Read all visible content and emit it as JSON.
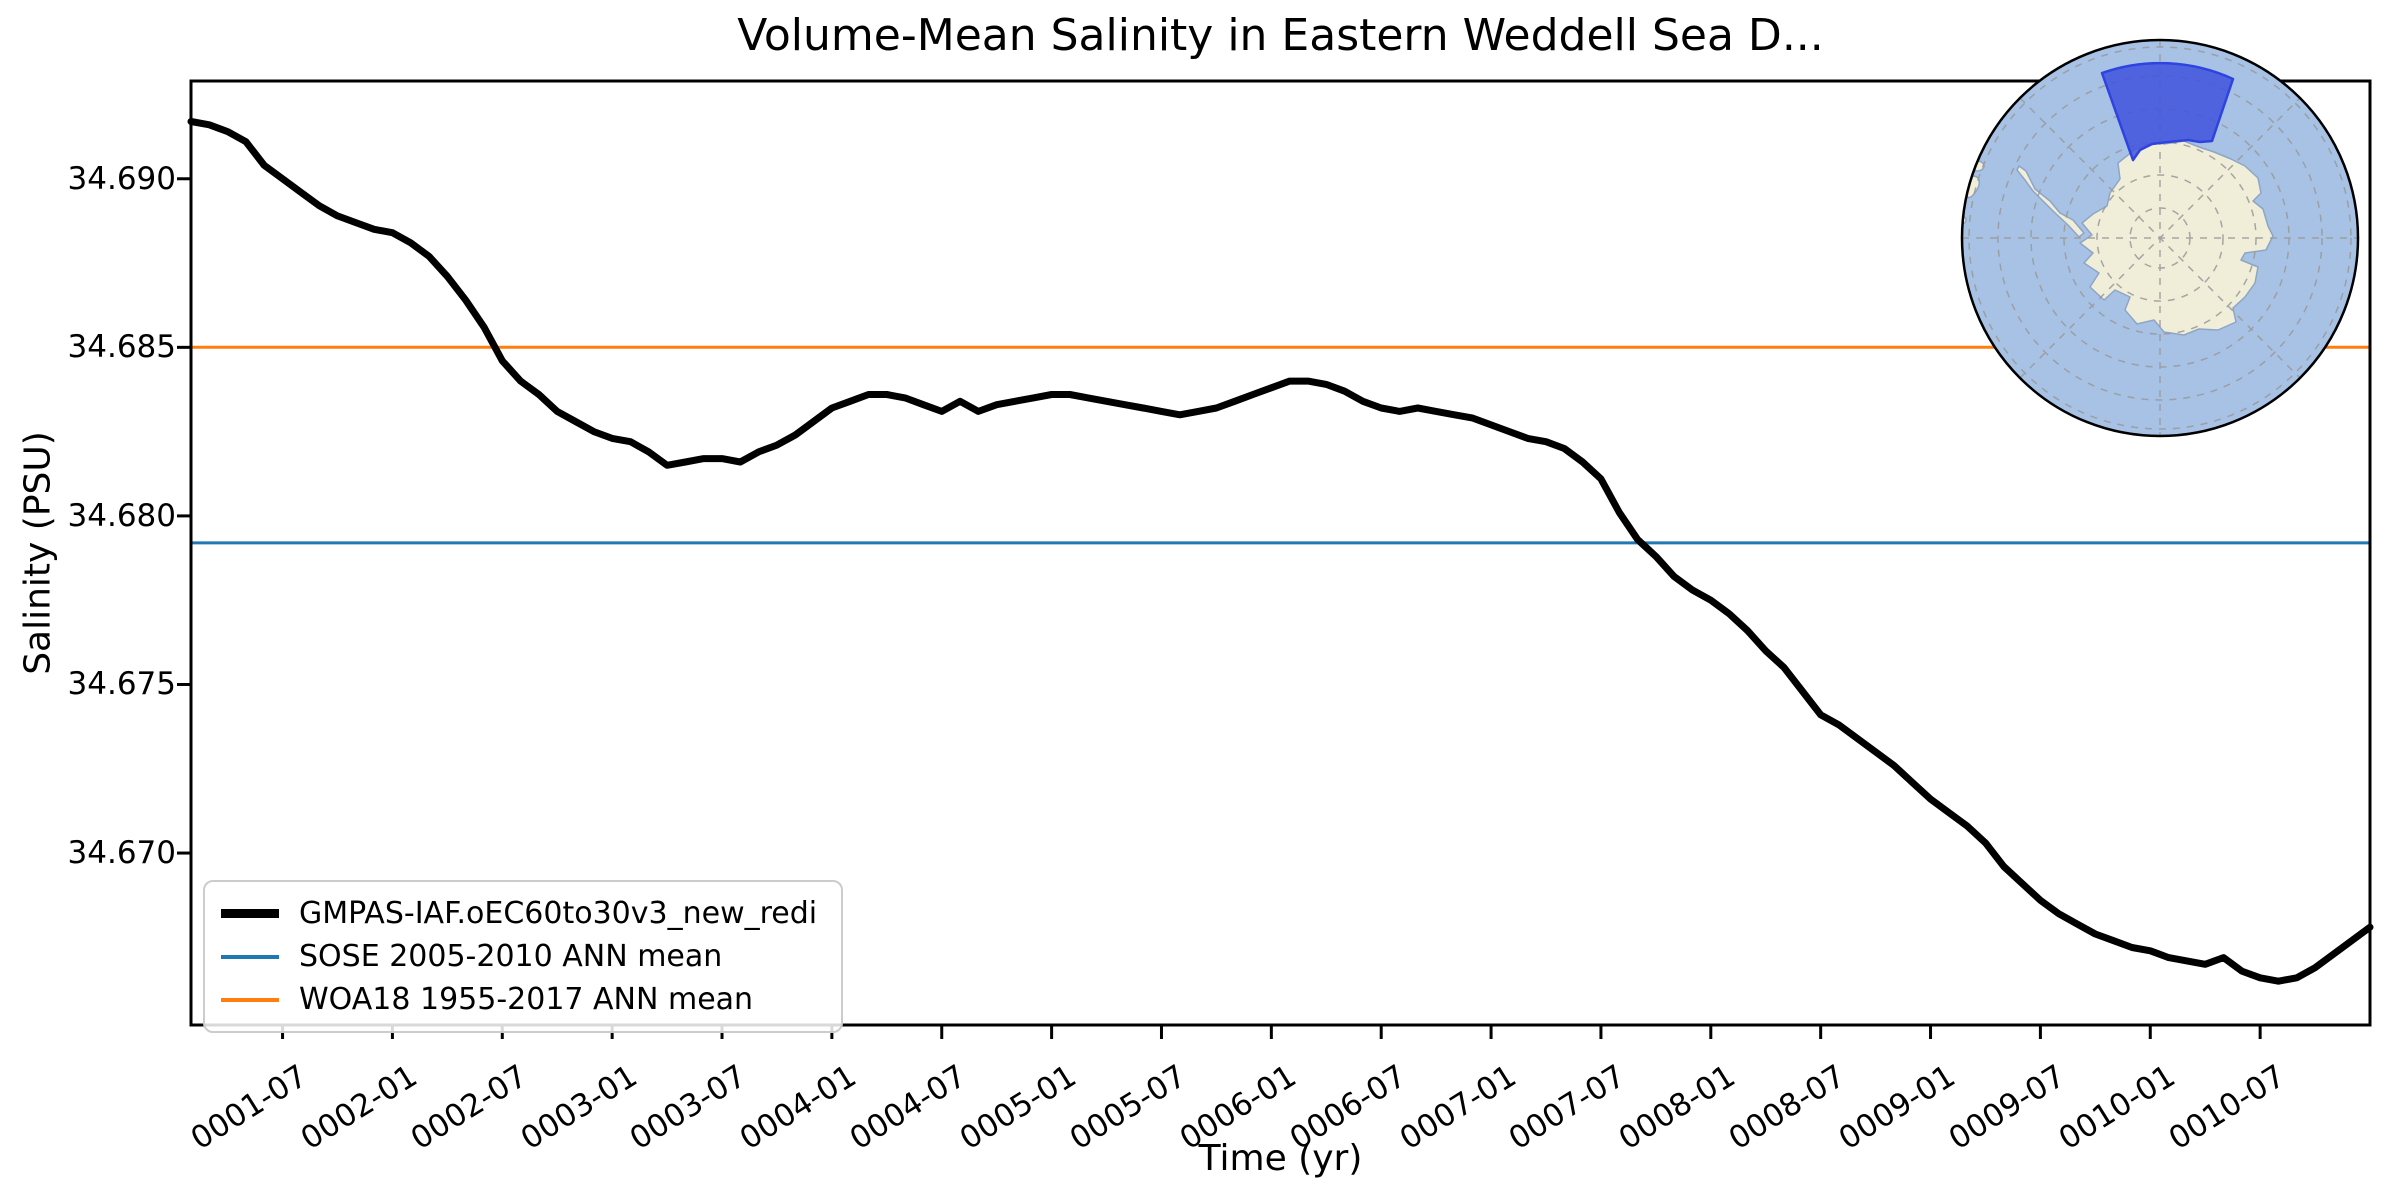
{
  "chart_data": {
    "type": "line",
    "title": "Volume-Mean Salinity in Eastern Weddell Sea D...",
    "xlabel": "Time (yr)",
    "ylabel": "Salinity (PSU)",
    "grid": false,
    "ylim": [
      34.6649,
      34.6929
    ],
    "y_ticks": [
      {
        "value": 34.67,
        "label": "34.670"
      },
      {
        "value": 34.675,
        "label": "34.675"
      },
      {
        "value": 34.68,
        "label": "34.680"
      },
      {
        "value": 34.685,
        "label": "34.685"
      },
      {
        "value": 34.69,
        "label": "34.690"
      }
    ],
    "x_ticks": [
      {
        "month": 5,
        "label": "0001-07"
      },
      {
        "month": 11,
        "label": "0002-01"
      },
      {
        "month": 17,
        "label": "0002-07"
      },
      {
        "month": 23,
        "label": "0003-01"
      },
      {
        "month": 29,
        "label": "0003-07"
      },
      {
        "month": 35,
        "label": "0004-01"
      },
      {
        "month": 41,
        "label": "0004-07"
      },
      {
        "month": 47,
        "label": "0005-01"
      },
      {
        "month": 53,
        "label": "0005-07"
      },
      {
        "month": 59,
        "label": "0006-01"
      },
      {
        "month": 65,
        "label": "0006-07"
      },
      {
        "month": 71,
        "label": "0007-01"
      },
      {
        "month": 77,
        "label": "0007-07"
      },
      {
        "month": 83,
        "label": "0008-01"
      },
      {
        "month": 89,
        "label": "0008-07"
      },
      {
        "month": 95,
        "label": "0009-01"
      },
      {
        "month": 101,
        "label": "0009-07"
      },
      {
        "month": 107,
        "label": "0010-01"
      },
      {
        "month": 113,
        "label": "0010-07"
      }
    ],
    "series": [
      {
        "name": "GMPAS-IAF.oEC60to30v3_new_redi",
        "color": "#000000",
        "linewidth": 7,
        "cadence": "monthly",
        "values": [
          34.6917,
          34.6916,
          34.6914,
          34.6911,
          34.6904,
          34.69,
          34.6896,
          34.6892,
          34.6889,
          34.6887,
          34.6885,
          34.6884,
          34.6881,
          34.6877,
          34.6871,
          34.6864,
          34.6856,
          34.6846,
          34.684,
          34.6836,
          34.6831,
          34.6828,
          34.6825,
          34.6823,
          34.6822,
          34.6819,
          34.6815,
          34.6816,
          34.6817,
          34.6817,
          34.6816,
          34.6819,
          34.6821,
          34.6824,
          34.6828,
          34.6832,
          34.6834,
          34.6836,
          34.6836,
          34.6835,
          34.6833,
          34.6831,
          34.6834,
          34.6831,
          34.6833,
          34.6834,
          34.6835,
          34.6836,
          34.6836,
          34.6835,
          34.6834,
          34.6833,
          34.6832,
          34.6831,
          34.683,
          34.6831,
          34.6832,
          34.6834,
          34.6836,
          34.6838,
          34.684,
          34.684,
          34.6839,
          34.6837,
          34.6834,
          34.6832,
          34.6831,
          34.6832,
          34.6831,
          34.683,
          34.6829,
          34.6827,
          34.6825,
          34.6823,
          34.6822,
          34.682,
          34.6816,
          34.6811,
          34.6801,
          34.6793,
          34.6788,
          34.6782,
          34.6778,
          34.6775,
          34.6771,
          34.6766,
          34.676,
          34.6755,
          34.6748,
          34.6741,
          34.6738,
          34.6734,
          34.673,
          34.6726,
          34.6721,
          34.6716,
          34.6712,
          34.6708,
          34.6703,
          34.6696,
          34.6691,
          34.6686,
          34.6682,
          34.6679,
          34.6676,
          34.6674,
          34.6672,
          34.6671,
          34.6669,
          34.6668,
          34.6667,
          34.6669,
          34.6665,
          34.6663,
          34.6662,
          34.6663,
          34.6666,
          34.667,
          34.6674,
          34.6678
        ]
      }
    ],
    "reference_lines": [
      {
        "name": "SOSE 2005-2010 ANN mean",
        "value": 34.6792,
        "color": "#1f77b4",
        "linewidth": 3
      },
      {
        "name": "WOA18 1955-2017 ANN mean",
        "value": 34.685,
        "color": "#ff7f0e",
        "linewidth": 3
      }
    ]
  },
  "legend": {
    "entries": [
      {
        "label": "GMPAS-IAF.oEC60to30v3_new_redi",
        "color": "#000000",
        "thickness": 9
      },
      {
        "label": "SOSE 2005-2010 ANN mean",
        "color": "#1f77b4",
        "thickness": 4
      },
      {
        "label": "WOA18 1955-2017 ANN mean",
        "color": "#ff7f0e",
        "thickness": 4
      }
    ]
  },
  "inset_map": {
    "description": "South polar stereographic map of Antarctica with highlighted eastern Weddell Sea sector",
    "ocean_color": "#a7c2e4",
    "land_color": "#f0edd8",
    "coast_color": "#8fa5c4",
    "region_fill": "#4152de",
    "region_edge": "#2e43e0",
    "graticule_color": "#999999",
    "border_color": "#000000"
  }
}
